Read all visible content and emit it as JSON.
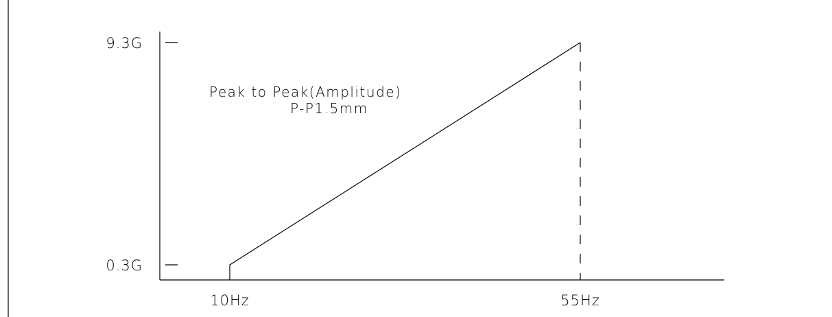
{
  "chart_data": {
    "type": "line",
    "title": "",
    "xlabel": "",
    "ylabel": "",
    "x_ticks": [
      {
        "value": 10,
        "label": "10Hz"
      },
      {
        "value": 55,
        "label": "55Hz"
      }
    ],
    "y_ticks": [
      {
        "value": 0.3,
        "label": "0.3G"
      },
      {
        "value": 9.3,
        "label": "9.3G"
      }
    ],
    "series": [
      {
        "points": [
          {
            "x": 10,
            "y": 0
          },
          {
            "x": 10,
            "y": 0.3
          },
          {
            "x": 55,
            "y": 9.3
          }
        ]
      }
    ],
    "drop_line": {
      "x": 55,
      "y_from": 9.3,
      "y_to": 0,
      "style": "dashed"
    },
    "annotation": [
      "Peak to Peak(Amplitude)",
      "P-P1.5mm"
    ],
    "grid": false,
    "legend": "none",
    "colors": {
      "line": "#000000",
      "background": "#ffffff"
    }
  }
}
